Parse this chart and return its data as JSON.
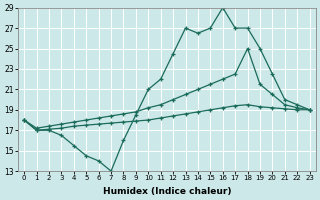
{
  "xlabel": "Humidex (Indice chaleur)",
  "background_color": "#cce8e8",
  "line_color": "#1a6b5a",
  "grid_color": "#ffffff",
  "xmin": -0.5,
  "xmax": 23.5,
  "ymin": 13,
  "ymax": 29,
  "yticks": [
    13,
    15,
    17,
    19,
    21,
    23,
    25,
    27,
    29
  ],
  "xticks": [
    0,
    1,
    2,
    3,
    4,
    5,
    6,
    7,
    8,
    9,
    10,
    11,
    12,
    13,
    14,
    15,
    16,
    17,
    18,
    19,
    20,
    21,
    22,
    23
  ],
  "s1": [
    18.0,
    17.0,
    17.0,
    16.5,
    15.5,
    14.5,
    14.0,
    13.0,
    16.0,
    18.5,
    21.0,
    22.0,
    24.5,
    27.0,
    26.5,
    27.0,
    29.0,
    27.0,
    27.0,
    25.0,
    22.5,
    20.0,
    19.5,
    19.0
  ],
  "s2": [
    18.0,
    17.2,
    17.4,
    17.6,
    17.8,
    18.0,
    18.2,
    18.4,
    18.6,
    18.8,
    19.2,
    19.5,
    20.0,
    20.5,
    21.0,
    21.5,
    22.0,
    22.5,
    25.0,
    21.5,
    20.5,
    19.5,
    19.2,
    19.0
  ],
  "s3": [
    18.0,
    17.0,
    17.1,
    17.2,
    17.4,
    17.5,
    17.6,
    17.7,
    17.8,
    17.9,
    18.0,
    18.2,
    18.4,
    18.6,
    18.8,
    19.0,
    19.2,
    19.4,
    19.5,
    19.3,
    19.2,
    19.1,
    19.0,
    19.0
  ]
}
